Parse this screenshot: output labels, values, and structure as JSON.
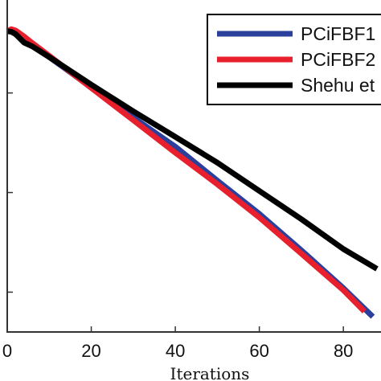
{
  "chart_data": {
    "type": "line",
    "xlabel": "Iterations",
    "ylabel": "",
    "xlim": [
      0,
      88
    ],
    "ylim": [
      0,
      1
    ],
    "x_ticks": [
      0,
      20,
      40,
      60,
      80
    ],
    "x_tick_labels": [
      "0",
      "20",
      "40",
      "60",
      "80"
    ],
    "grid": false,
    "legend": {
      "placement": "top-right",
      "entries": [
        "PCiFBF1",
        "PCiFBF2",
        "Shehu et"
      ]
    },
    "series": [
      {
        "name": "PCiFBF1",
        "color": "#2b3f9c",
        "x": [
          0,
          1,
          2,
          4,
          6,
          10,
          20,
          30,
          40,
          50,
          60,
          70,
          80,
          87
        ],
        "y": [
          0.906,
          0.91,
          0.906,
          0.883,
          0.862,
          0.828,
          0.737,
          0.646,
          0.558,
          0.456,
          0.356,
          0.246,
          0.132,
          0.046
        ]
      },
      {
        "name": "PCiFBF2",
        "color": "#e8202e",
        "x": [
          0,
          1,
          2,
          4,
          6,
          10,
          20,
          30,
          40,
          50,
          60,
          70,
          80,
          85
        ],
        "y": [
          0.906,
          0.912,
          0.908,
          0.89,
          0.87,
          0.832,
          0.735,
          0.638,
          0.54,
          0.445,
          0.345,
          0.236,
          0.126,
          0.062
        ]
      },
      {
        "name": "Shehu et",
        "color": "#000000",
        "x": [
          0,
          1,
          2,
          4,
          6,
          10,
          20,
          30,
          40,
          50,
          60,
          70,
          80,
          88
        ],
        "y": [
          0.906,
          0.904,
          0.897,
          0.872,
          0.86,
          0.828,
          0.745,
          0.665,
          0.588,
          0.51,
          0.425,
          0.34,
          0.25,
          0.19
        ]
      }
    ]
  }
}
